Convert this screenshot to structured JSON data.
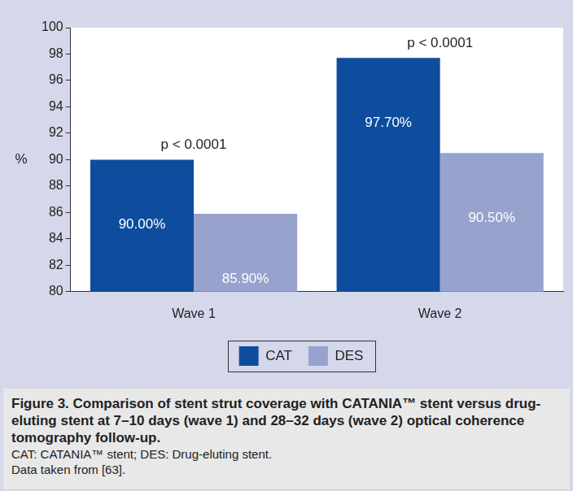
{
  "chart_data": {
    "type": "bar",
    "categories": [
      "Wave 1",
      "Wave 2"
    ],
    "series": [
      {
        "name": "CAT",
        "color": "#0e4d9e",
        "values": [
          90.0,
          97.7
        ],
        "value_labels": [
          "90.00%",
          "97.70%"
        ]
      },
      {
        "name": "DES",
        "color": "#97a3cc",
        "values": [
          85.9,
          90.5
        ],
        "value_labels": [
          "85.90%",
          "90.50%"
        ]
      }
    ],
    "y_label": "%",
    "ylim": [
      80,
      100
    ],
    "yticks": [
      80,
      82,
      84,
      86,
      88,
      90,
      92,
      94,
      96,
      98,
      100
    ],
    "grid": false,
    "legend": "bottom",
    "data_labels": true,
    "annotations": [
      {
        "category": "Wave 1",
        "text": "p < 0.0001"
      },
      {
        "category": "Wave 2",
        "text": "p < 0.0001"
      }
    ]
  },
  "caption": {
    "title": "Figure 3. Comparison of stent strut coverage with CATANIA™ stent versus drug-eluting stent at 7–10 days (wave 1) and 28–32 days (wave 2) optical coherence tomography follow-up.",
    "lines": [
      "CAT: CATANIA™ stent; DES: Drug-eluting stent.",
      "Data taken from [63]."
    ]
  }
}
